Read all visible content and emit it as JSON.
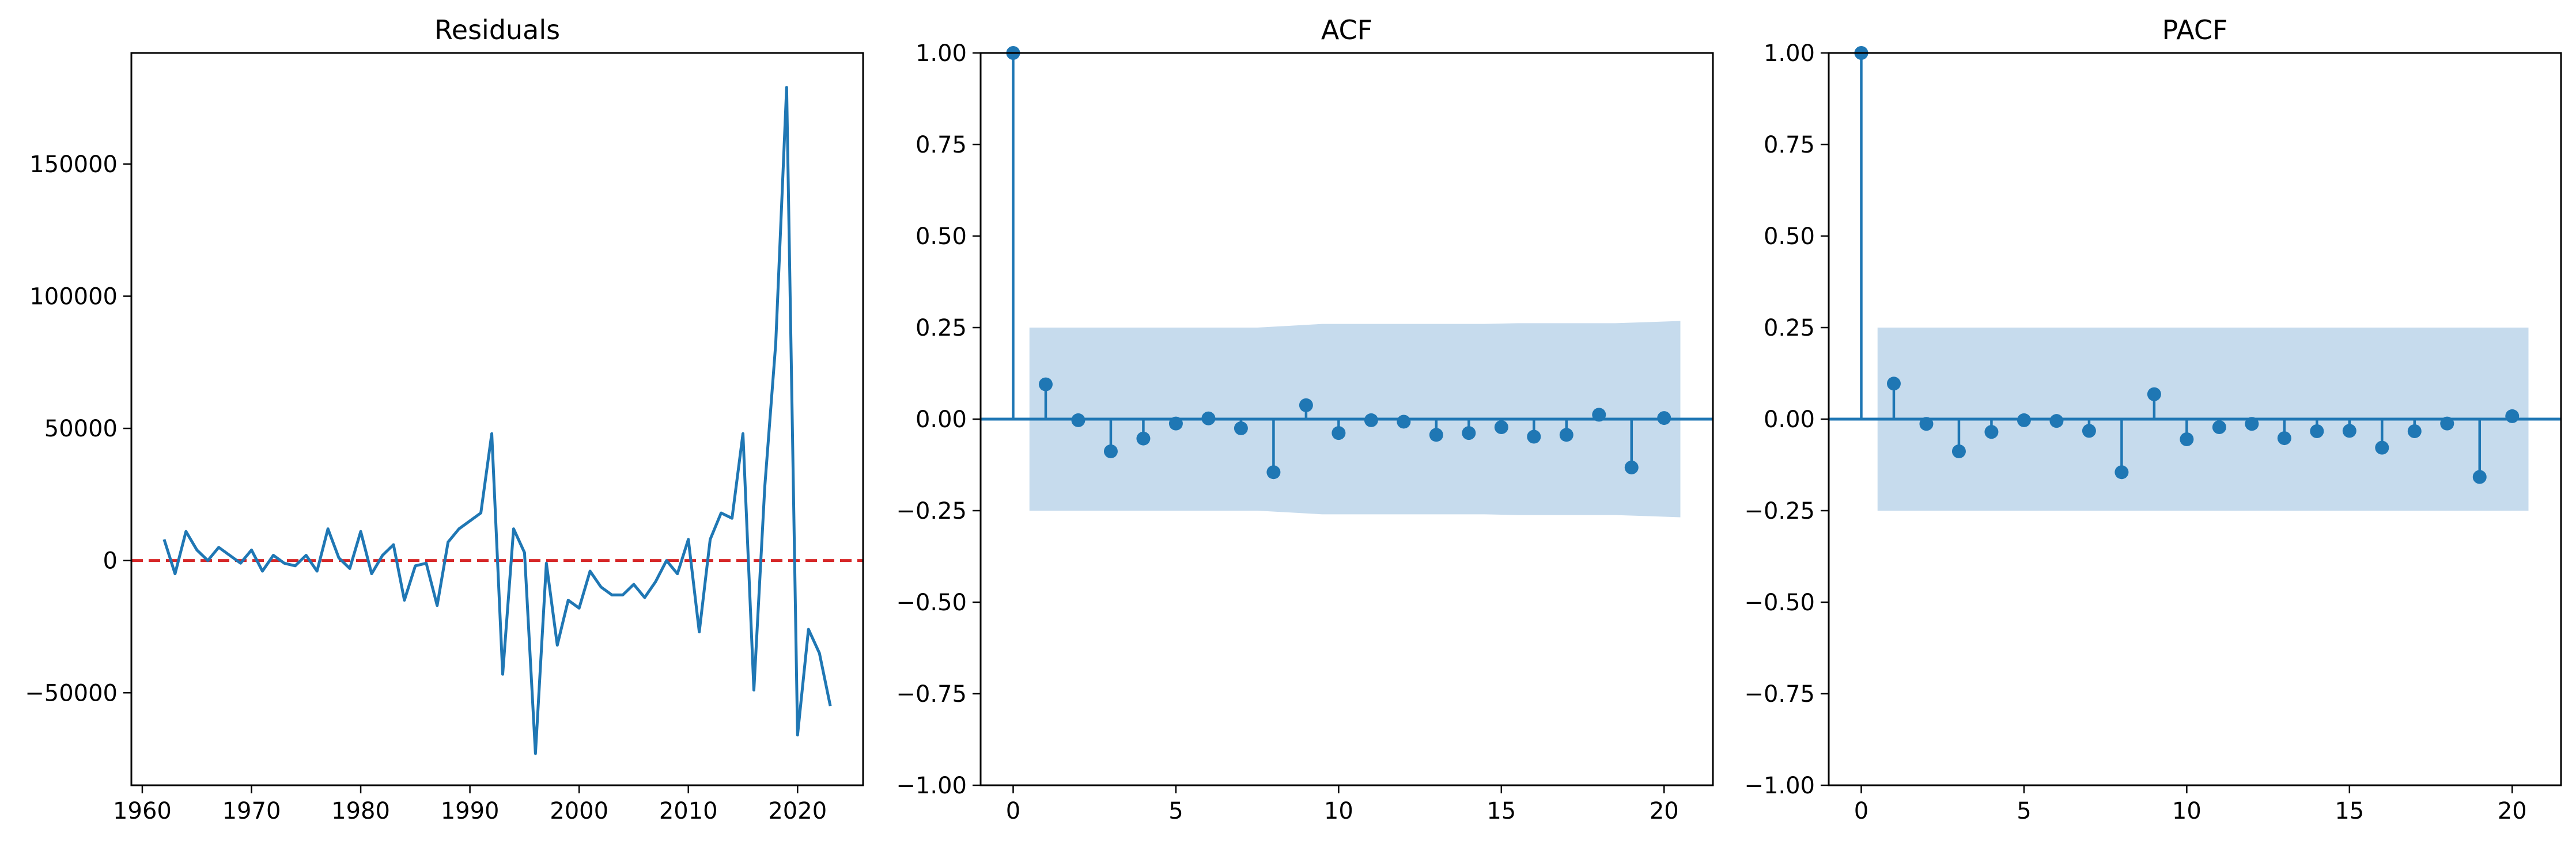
{
  "chart_data": [
    {
      "type": "line",
      "title": "Residuals",
      "xlabel": "",
      "ylabel": "",
      "xlim": [
        1959,
        2026
      ],
      "ylim": [
        -85000,
        192000
      ],
      "xticks": [
        1960,
        1970,
        1980,
        1990,
        2000,
        2010,
        2020
      ],
      "yticks": [
        -50000,
        0,
        50000,
        100000,
        150000
      ],
      "grid": false,
      "series_color": "#1f77b4",
      "reference_line": {
        "y": 0,
        "style": "dashed",
        "color": "#d62728"
      },
      "x": [
        1962,
        1963,
        1964,
        1965,
        1966,
        1967,
        1968,
        1969,
        1970,
        1971,
        1972,
        1973,
        1974,
        1975,
        1976,
        1977,
        1978,
        1979,
        1980,
        1981,
        1982,
        1983,
        1984,
        1985,
        1986,
        1987,
        1988,
        1989,
        1990,
        1991,
        1992,
        1993,
        1994,
        1995,
        1996,
        1997,
        1998,
        1999,
        2000,
        2001,
        2002,
        2003,
        2004,
        2005,
        2006,
        2007,
        2008,
        2009,
        2010,
        2011,
        2012,
        2013,
        2014,
        2015,
        2016,
        2017,
        2018,
        2019,
        2020,
        2021,
        2022,
        2023
      ],
      "y": [
        8000,
        -5000,
        11000,
        4000,
        0,
        5000,
        2000,
        -1000,
        4000,
        -4000,
        2000,
        -1000,
        -2000,
        2000,
        -4000,
        12000,
        1000,
        -3000,
        11000,
        -5000,
        2000,
        6000,
        -15000,
        -2000,
        -1000,
        -17000,
        7000,
        12000,
        15000,
        18000,
        48000,
        -43000,
        12000,
        3000,
        -73000,
        -1000,
        -32000,
        -15000,
        -18000,
        -4000,
        -10000,
        -13000,
        -13000,
        -9000,
        -14000,
        -8000,
        0,
        -5000,
        8000,
        -27000,
        8000,
        18000,
        16000,
        48000,
        -49000,
        28000,
        82000,
        179000,
        -66000,
        -26000,
        -35000,
        -55000
      ]
    },
    {
      "type": "stem",
      "title": "ACF",
      "xlabel": "",
      "ylabel": "",
      "xlim": [
        -1,
        21.5
      ],
      "ylim": [
        -1.0,
        1.0
      ],
      "xticks": [
        0,
        5,
        10,
        15,
        20
      ],
      "yticks": [
        -1.0,
        -0.75,
        -0.5,
        -0.25,
        0.0,
        0.25,
        0.5,
        0.75,
        1.0
      ],
      "ytick_labels": [
        "−1.00",
        "−0.75",
        "−0.50",
        "−0.25",
        "0.00",
        "0.25",
        "0.50",
        "0.75",
        "1.00"
      ],
      "grid": false,
      "series_color": "#1f77b4",
      "band_color": "#c6dbed",
      "lags": [
        0,
        1,
        2,
        3,
        4,
        5,
        6,
        7,
        8,
        9,
        10,
        11,
        12,
        13,
        14,
        15,
        16,
        17,
        18,
        19,
        20
      ],
      "values": [
        1.0,
        0.095,
        -0.003,
        -0.088,
        -0.053,
        -0.012,
        0.002,
        -0.025,
        -0.145,
        0.038,
        -0.038,
        -0.003,
        -0.007,
        -0.043,
        -0.038,
        -0.022,
        -0.048,
        -0.043,
        0.012,
        -0.132,
        0.003
      ],
      "confidence_band": {
        "start": 0.5,
        "end": 20.5,
        "upper": [
          0.25,
          0.25,
          0.25,
          0.25,
          0.25,
          0.25,
          0.25,
          0.25,
          0.255,
          0.26,
          0.26,
          0.26,
          0.26,
          0.26,
          0.26,
          0.262,
          0.262,
          0.262,
          0.262,
          0.265,
          0.268
        ]
      }
    },
    {
      "type": "stem",
      "title": "PACF",
      "xlabel": "",
      "ylabel": "",
      "xlim": [
        -1,
        21.5
      ],
      "ylim": [
        -1.0,
        1.0
      ],
      "xticks": [
        0,
        5,
        10,
        15,
        20
      ],
      "yticks": [
        -1.0,
        -0.75,
        -0.5,
        -0.25,
        0.0,
        0.25,
        0.5,
        0.75,
        1.0
      ],
      "ytick_labels": [
        "−1.00",
        "−0.75",
        "−0.50",
        "−0.25",
        "0.00",
        "0.25",
        "0.50",
        "0.75",
        "1.00"
      ],
      "grid": false,
      "series_color": "#1f77b4",
      "band_color": "#c6dbed",
      "lags": [
        0,
        1,
        2,
        3,
        4,
        5,
        6,
        7,
        8,
        9,
        10,
        11,
        12,
        13,
        14,
        15,
        16,
        17,
        18,
        19,
        20
      ],
      "values": [
        1.0,
        0.097,
        -0.013,
        -0.088,
        -0.035,
        -0.003,
        -0.005,
        -0.032,
        -0.145,
        0.068,
        -0.055,
        -0.022,
        -0.013,
        -0.052,
        -0.033,
        -0.032,
        -0.078,
        -0.033,
        -0.012,
        -0.158,
        0.008
      ],
      "confidence_band": {
        "start": 0.5,
        "end": 20.5,
        "upper": [
          0.25,
          0.25,
          0.25,
          0.25,
          0.25,
          0.25,
          0.25,
          0.25,
          0.25,
          0.25,
          0.25,
          0.25,
          0.25,
          0.25,
          0.25,
          0.25,
          0.25,
          0.25,
          0.25,
          0.25,
          0.25
        ]
      }
    }
  ]
}
